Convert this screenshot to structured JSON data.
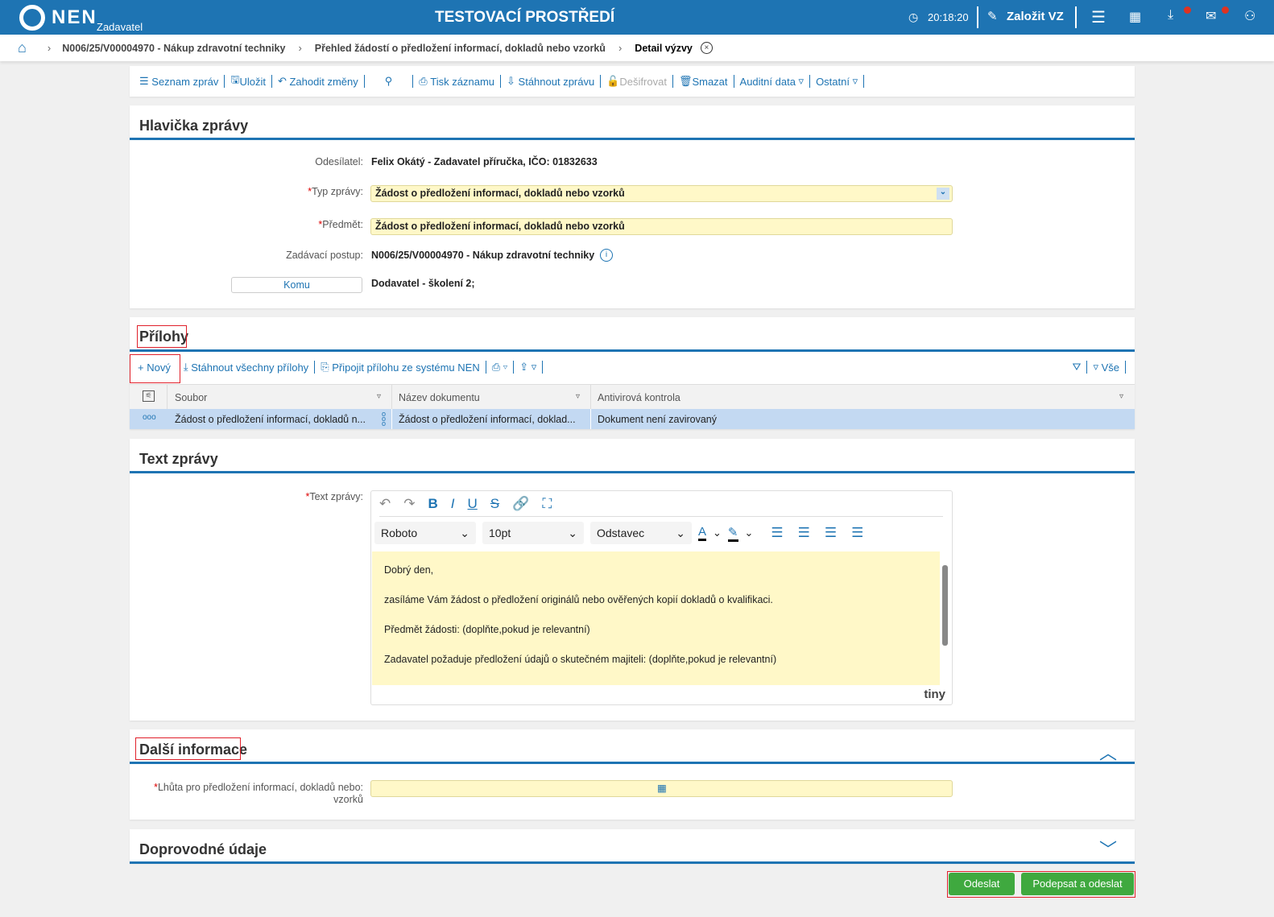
{
  "header": {
    "logo": "NEN",
    "logo_sub": "Zadavatel",
    "env_title": "TESTOVACÍ PROSTŘEDÍ",
    "time": "20:18:20",
    "create_label": "Založit VZ"
  },
  "breadcrumb": {
    "items": [
      "N006/25/V00004970 - Nákup zdravotní techniky",
      "Přehled žádostí o předložení informací, dokladů nebo vzorků"
    ],
    "current": "Detail výzvy"
  },
  "toolbar": {
    "list": "Seznam zpráv",
    "save": "Uložit",
    "discard": "Zahodit změny",
    "print": "Tisk záznamu",
    "download": "Stáhnout zprávu",
    "decrypt": "Dešifrovat",
    "delete": "Smazat",
    "audit": "Auditní data",
    "other": "Ostatní"
  },
  "header_section": {
    "title": "Hlavička zprávy",
    "sender_label": "Odesílatel:",
    "sender": "Felix Okátý - Zadavatel příručka, IČO: 01832633",
    "type_label": "Typ zprávy:",
    "type": "Žádost o předložení informací, dokladů nebo vzorků",
    "subject_label": "Předmět:",
    "subject": "Žádost o předložení informací, dokladů nebo vzorků",
    "procedure_label": "Zadávací postup:",
    "procedure": "N006/25/V00004970 - Nákup zdravotní techniky",
    "to_button": "Komu",
    "to": "Dodavatel - školení 2;"
  },
  "attachments": {
    "title": "Přílohy",
    "new": "Nový",
    "download_all": "Stáhnout všechny přílohy",
    "attach_nen": "Připojit přílohu ze systému NEN",
    "filter_all": "Vše",
    "columns": [
      "Soubor",
      "Název dokumentu",
      "Antivirová kontrola"
    ],
    "rows": [
      {
        "file": "Žádost o předložení informací, dokladů n...",
        "name": "Žádost o předložení informací, doklad...",
        "av": "Dokument není zavirovaný"
      }
    ]
  },
  "message": {
    "title": "Text zprávy",
    "label": "Text zprávy:",
    "font": "Roboto",
    "size": "10pt",
    "block": "Odstavec",
    "brand": "tiny",
    "paragraphs": [
      "Dobrý den,",
      "zasíláme Vám žádost o předložení originálů nebo ověřených kopií dokladů o kvalifikaci.",
      "Předmět žádosti: (doplňte,pokud je relevantní)",
      "Zadavatel požaduje předložení údajů o skutečném majiteli: (doplňte,pokud je relevantní)"
    ]
  },
  "more_info": {
    "title": "Další informace",
    "deadline_label": "Lhůta pro předložení informací, dokladů nebo: vzorků",
    "deadline": ""
  },
  "accompanying": {
    "title": "Doprovodné údaje"
  },
  "actions": {
    "send": "Odeslat",
    "sign_send": "Podepsat a odeslat"
  },
  "colors": {
    "brand": "#1e74b3",
    "required_bg": "#fff8c8",
    "send": "#3fa93f",
    "highlight": "#e0202a"
  }
}
